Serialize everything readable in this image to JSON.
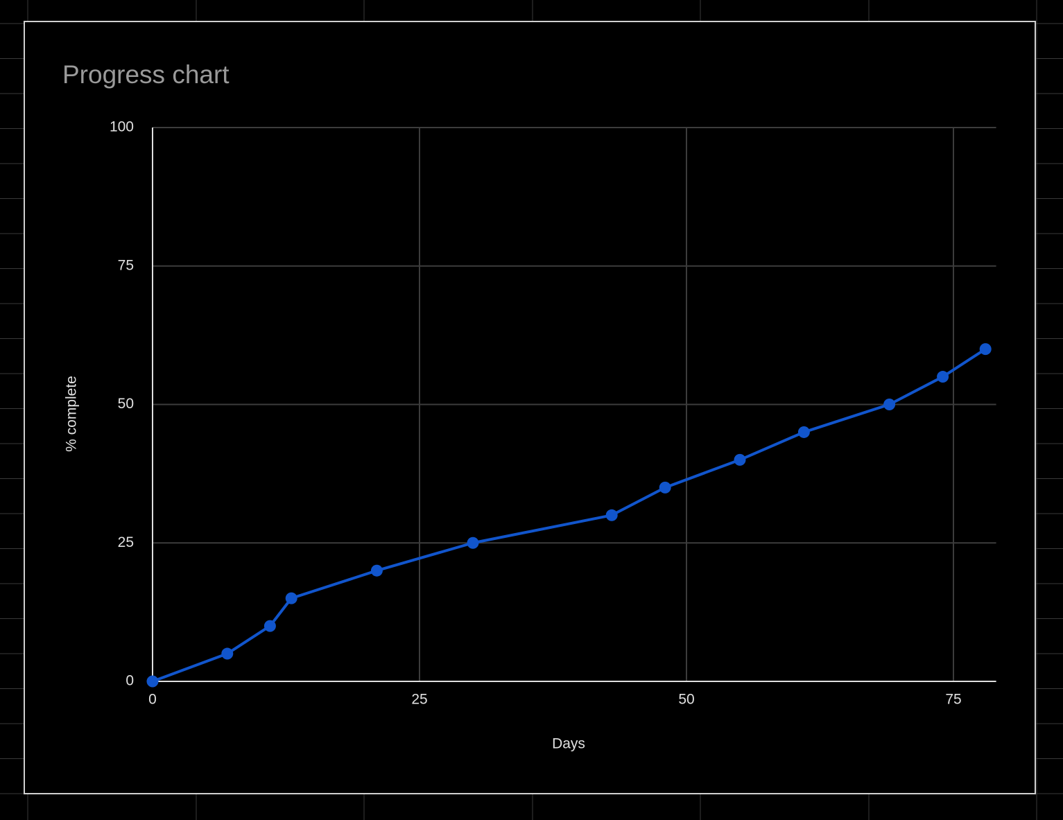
{
  "chart_data": {
    "type": "line",
    "title": "Progress chart",
    "x_label": "Days",
    "y_label": "% complete",
    "x": [
      0,
      7,
      11,
      13,
      21,
      30,
      43,
      48,
      55,
      61,
      69,
      74,
      78
    ],
    "series": [
      {
        "name": "% complete",
        "color": "#1155cc",
        "values": [
          0,
          5,
          10,
          15,
          20,
          25,
          30,
          35,
          40,
          45,
          50,
          55,
          60
        ]
      }
    ],
    "xlim": [
      0,
      79
    ],
    "xticks": [
      0,
      25,
      50,
      75
    ],
    "ylim": [
      0,
      100
    ],
    "yticks": [
      0,
      25,
      50,
      75,
      100
    ],
    "grid": true,
    "markers": true
  }
}
